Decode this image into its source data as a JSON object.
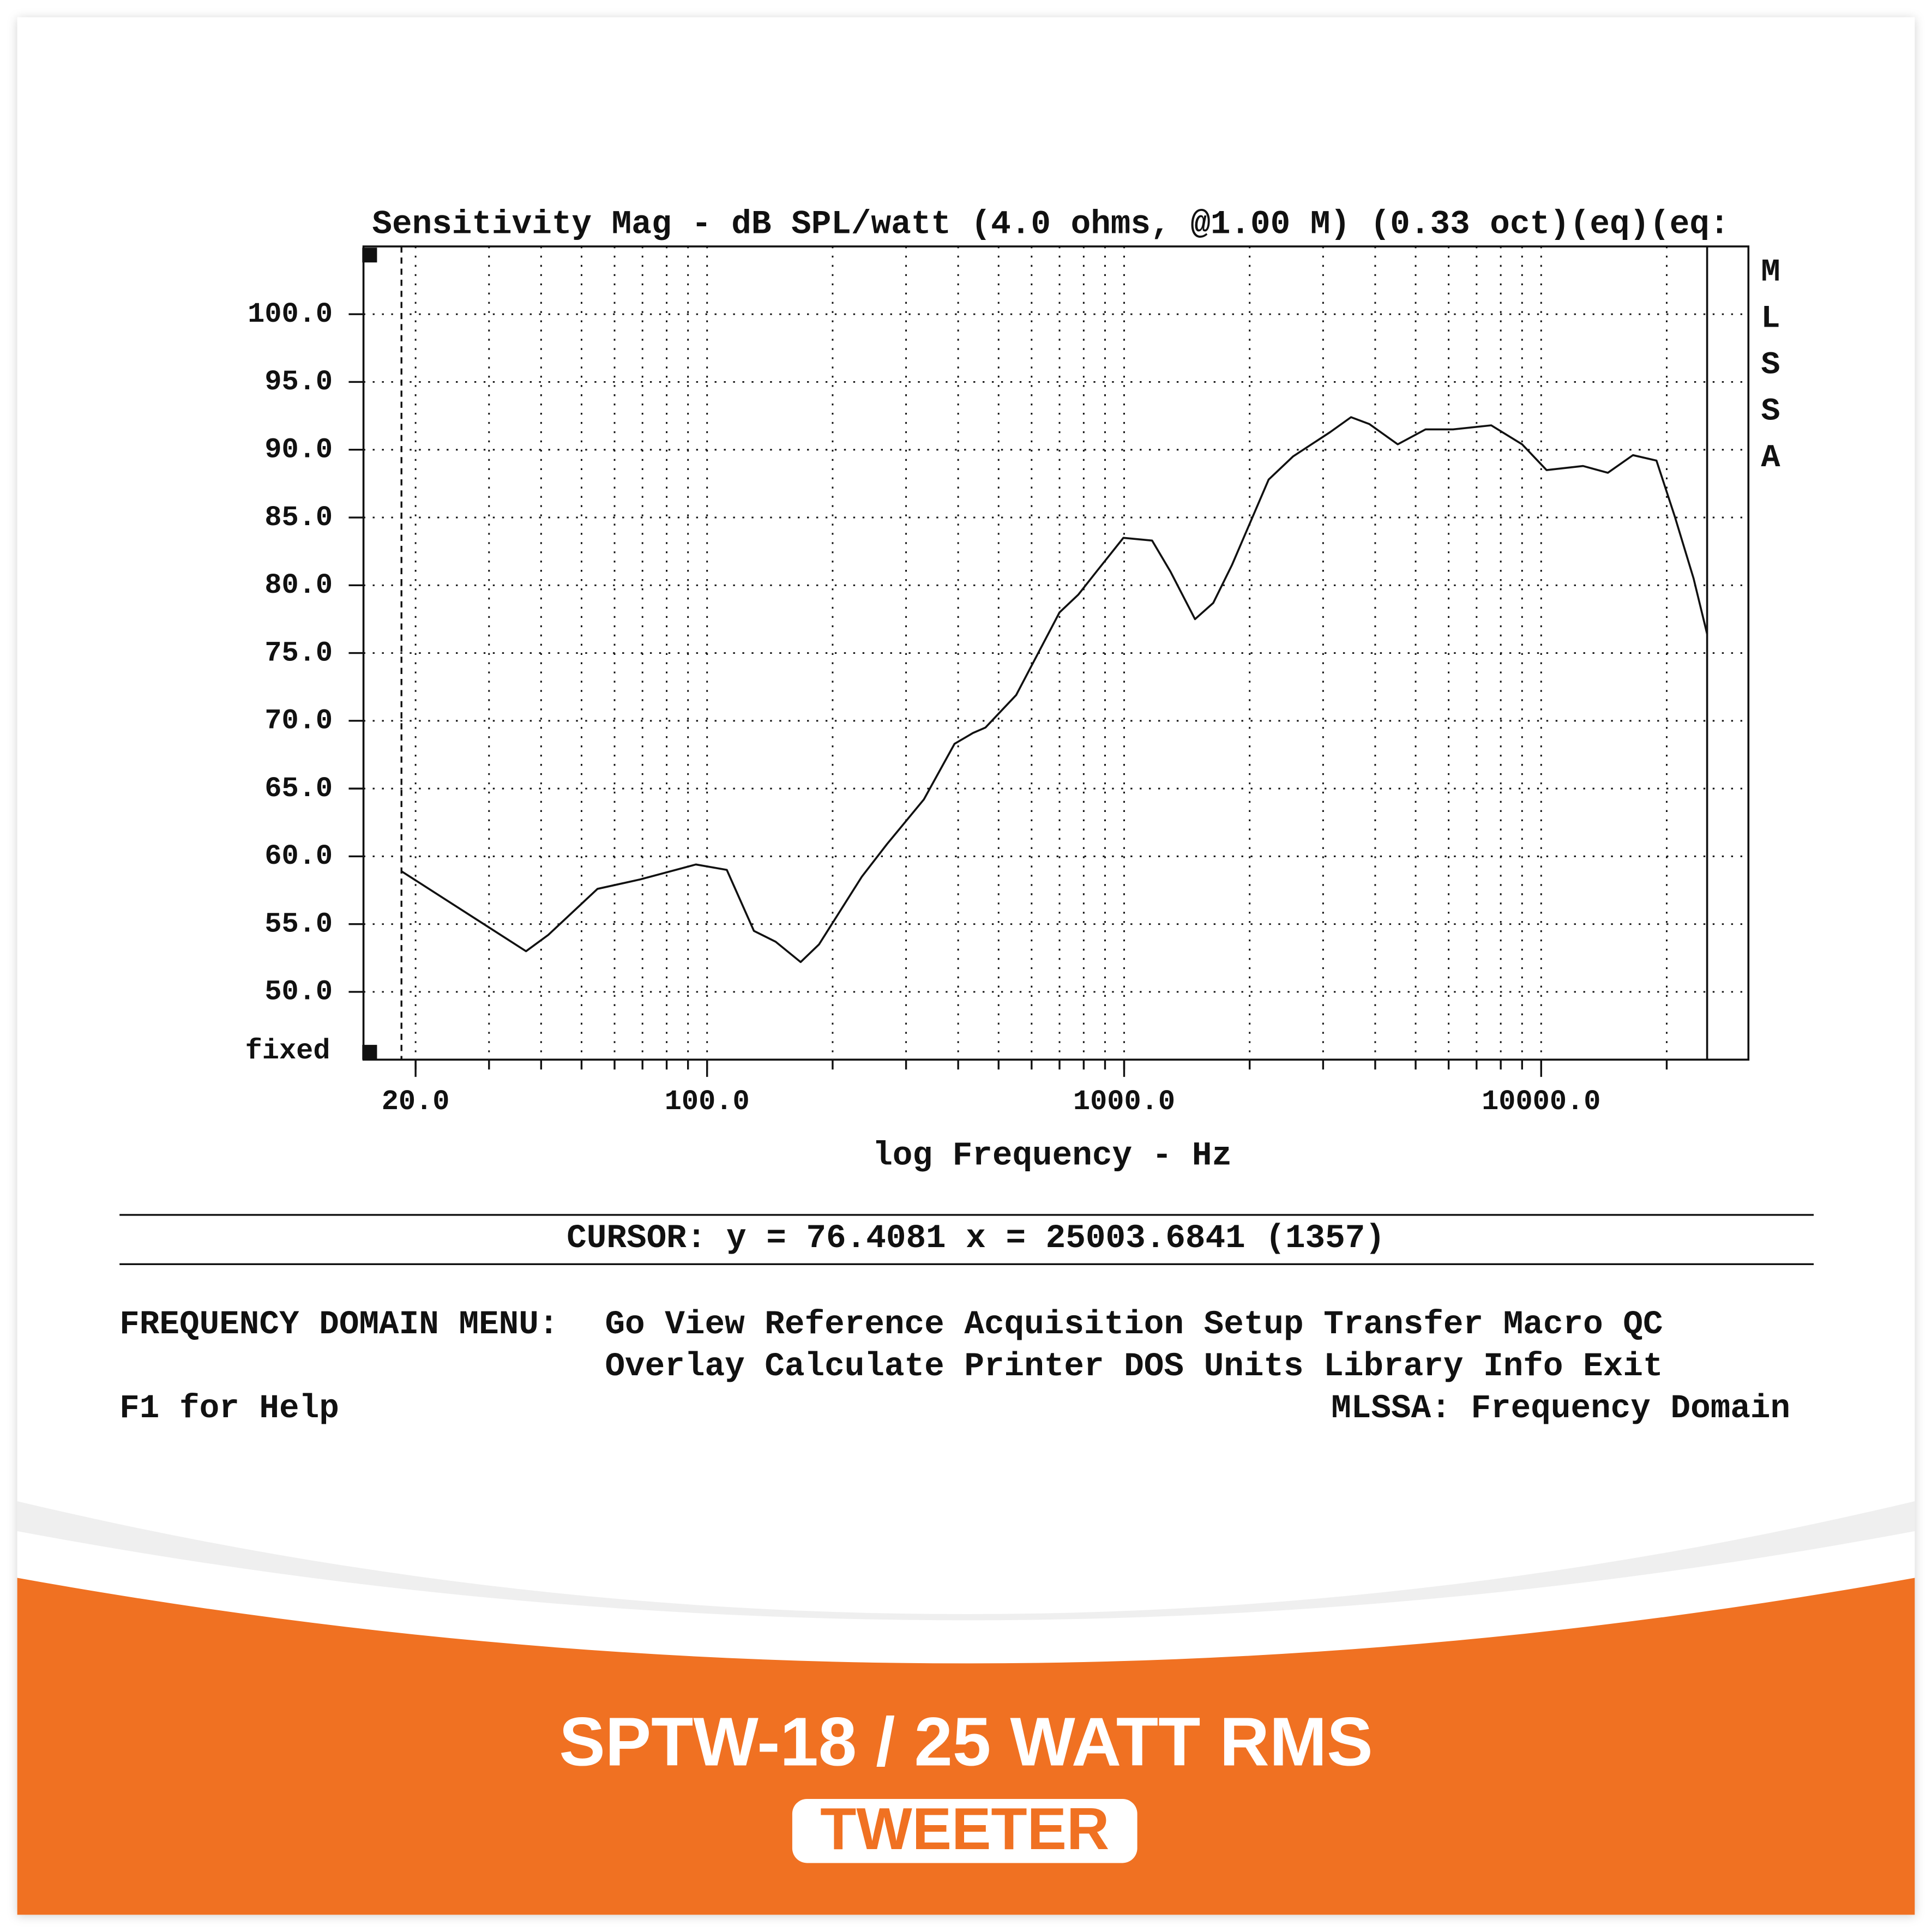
{
  "chart_data": {
    "type": "line",
    "title": "Sensitivity Mag - dB SPL/watt (4.0 ohms, @1.00 M) (0.33 oct)(eq)(eq:",
    "xlabel": "log Frequency - Hz",
    "side_label": "MLSSA",
    "y_bottom_label": "fixed",
    "xscale": "log",
    "xlim": [
      15,
      31400
    ],
    "ylim": [
      45,
      105
    ],
    "xticks": [
      {
        "value": 20,
        "label": "20.0"
      },
      {
        "value": 100,
        "label": "100.0"
      },
      {
        "value": 1000,
        "label": "1000.0"
      },
      {
        "value": 10000,
        "label": "10000.0"
      }
    ],
    "xminorticks": [
      20,
      30,
      40,
      50,
      60,
      70,
      80,
      90,
      100,
      200,
      300,
      400,
      500,
      600,
      700,
      800,
      900,
      1000,
      2000,
      3000,
      4000,
      5000,
      6000,
      7000,
      8000,
      9000,
      10000,
      20000
    ],
    "yticks": [
      {
        "value": 50,
        "label": "50.0"
      },
      {
        "value": 55,
        "label": "55.0"
      },
      {
        "value": 60,
        "label": "60.0"
      },
      {
        "value": 65,
        "label": "65.0"
      },
      {
        "value": 70,
        "label": "70.0"
      },
      {
        "value": 75,
        "label": "75.0"
      },
      {
        "value": 80,
        "label": "80.0"
      },
      {
        "value": 85,
        "label": "85.0"
      },
      {
        "value": 90,
        "label": "90.0"
      },
      {
        "value": 95,
        "label": "95.0"
      },
      {
        "value": 100,
        "label": "100.0"
      }
    ],
    "grid": true,
    "color": "#111111",
    "x": [
      18.5,
      36.8,
      41.6,
      54.6,
      69.2,
      94,
      111.5,
      129.5,
      146,
      167.6,
      185.5,
      235,
      270,
      331,
      392,
      434,
      465,
      551,
      700,
      776,
      858,
      996,
      1167,
      1292,
      1479,
      1636,
      1814,
      2221,
      2540,
      3119,
      3500,
      3870,
      4530,
      5280,
      6150,
      7590,
      9000,
      10300,
      12600,
      14450,
      16600,
      18900,
      20900,
      23200,
      25000
    ],
    "values": [
      58.9,
      53.0,
      54.2,
      57.6,
      58.3,
      59.4,
      59.0,
      54.5,
      53.7,
      52.2,
      53.5,
      58.5,
      60.9,
      64.2,
      68.3,
      69.1,
      69.5,
      71.9,
      78.0,
      79.3,
      81.0,
      83.5,
      83.3,
      81.0,
      77.5,
      78.7,
      81.5,
      87.8,
      89.5,
      91.3,
      92.4,
      91.9,
      90.4,
      91.5,
      91.5,
      91.8,
      90.4,
      88.5,
      88.8,
      88.3,
      89.6,
      89.2,
      85.1,
      80.5,
      76.4
    ]
  },
  "cursor": "CURSOR: y = 76.4081 x = 25003.6841 (1357)",
  "menu": {
    "label": "FREQUENCY DOMAIN MENU:",
    "lines": [
      "Go View Reference Acquisition Setup Transfer Macro QC",
      "Overlay Calculate Printer DOS Units Library Info Exit"
    ]
  },
  "help": "F1 for Help",
  "status": "MLSSA: Frequency Domain",
  "product": {
    "title": "SPTW-18 / 25 WATT RMS",
    "badge": "TWEETER"
  }
}
